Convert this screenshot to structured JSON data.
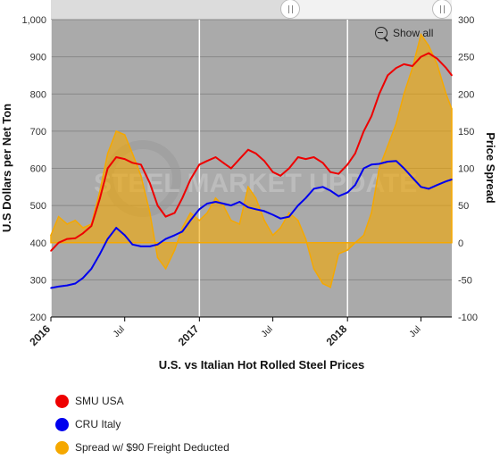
{
  "show_all_label": "Show all",
  "watermark_text": "STEEL MARKET UPDATE",
  "chart_data": {
    "type": "line",
    "title": "U.S. vs Italian Hot Rolled Steel Prices",
    "ylabel": "U.S Dollars per Net Ton",
    "y2label": "Price Spread",
    "ylim": [
      200,
      1000
    ],
    "y2lim": [
      -100,
      300
    ],
    "yticks": [
      "200",
      "300",
      "400",
      "500",
      "600",
      "700",
      "800",
      "900",
      "1,000"
    ],
    "y2ticks": [
      "-100",
      "-50",
      "0",
      "50",
      "100",
      "150",
      "200",
      "250",
      "300"
    ],
    "xlim": [
      "2016-01-01",
      "2018-09-15"
    ],
    "xticks": [
      {
        "label": "2016",
        "date": "2016-01-01",
        "major": true
      },
      {
        "label": "Jul",
        "date": "2016-07-01",
        "major": false
      },
      {
        "label": "2017",
        "date": "2017-01-01",
        "major": true
      },
      {
        "label": "Jul",
        "date": "2017-07-01",
        "major": false
      },
      {
        "label": "2018",
        "date": "2018-01-01",
        "major": true
      },
      {
        "label": "Jul",
        "date": "2018-07-01",
        "major": false
      }
    ],
    "grid": true,
    "legend_position": "bottom-left",
    "colors": {
      "smu": "#ee0000",
      "cru": "#0000ee",
      "spread": "#f5a800",
      "plot_bg": "#aaaaaa"
    },
    "series": [
      {
        "name": "SMU USA",
        "axis": "left",
        "x": [
          "2016-01-01",
          "2016-01-20",
          "2016-02-10",
          "2016-03-01",
          "2016-03-20",
          "2016-04-10",
          "2016-05-01",
          "2016-05-20",
          "2016-06-10",
          "2016-07-01",
          "2016-07-20",
          "2016-08-10",
          "2016-09-01",
          "2016-09-20",
          "2016-10-10",
          "2016-11-01",
          "2016-11-20",
          "2016-12-10",
          "2017-01-01",
          "2017-01-20",
          "2017-02-10",
          "2017-03-01",
          "2017-03-20",
          "2017-04-10",
          "2017-05-01",
          "2017-05-20",
          "2017-06-10",
          "2017-07-01",
          "2017-07-20",
          "2017-08-10",
          "2017-09-01",
          "2017-09-20",
          "2017-10-10",
          "2017-11-01",
          "2017-11-20",
          "2017-12-10",
          "2018-01-01",
          "2018-01-20",
          "2018-02-10",
          "2018-03-01",
          "2018-03-20",
          "2018-04-10",
          "2018-05-01",
          "2018-05-20",
          "2018-06-10",
          "2018-07-01",
          "2018-07-20",
          "2018-08-10",
          "2018-09-01",
          "2018-09-15"
        ],
        "values": [
          378,
          400,
          410,
          412,
          425,
          445,
          520,
          600,
          630,
          625,
          615,
          610,
          560,
          500,
          470,
          480,
          520,
          570,
          610,
          620,
          630,
          615,
          600,
          625,
          650,
          640,
          620,
          590,
          580,
          600,
          630,
          625,
          630,
          615,
          590,
          585,
          610,
          640,
          700,
          740,
          800,
          850,
          870,
          880,
          875,
          900,
          910,
          895,
          870,
          850
        ]
      },
      {
        "name": "CRU Italy",
        "axis": "left",
        "x": [
          "2016-01-01",
          "2016-01-20",
          "2016-02-10",
          "2016-03-01",
          "2016-03-20",
          "2016-04-10",
          "2016-05-01",
          "2016-05-20",
          "2016-06-10",
          "2016-07-01",
          "2016-07-20",
          "2016-08-10",
          "2016-09-01",
          "2016-09-20",
          "2016-10-10",
          "2016-11-01",
          "2016-11-20",
          "2016-12-10",
          "2017-01-01",
          "2017-01-20",
          "2017-02-10",
          "2017-03-01",
          "2017-03-20",
          "2017-04-10",
          "2017-05-01",
          "2017-05-20",
          "2017-06-10",
          "2017-07-01",
          "2017-07-20",
          "2017-08-10",
          "2017-09-01",
          "2017-09-20",
          "2017-10-10",
          "2017-11-01",
          "2017-11-20",
          "2017-12-10",
          "2018-01-01",
          "2018-01-20",
          "2018-02-10",
          "2018-03-01",
          "2018-03-20",
          "2018-04-10",
          "2018-05-01",
          "2018-05-20",
          "2018-06-10",
          "2018-07-01",
          "2018-07-20",
          "2018-08-10",
          "2018-09-01",
          "2018-09-15"
        ],
        "values": [
          278,
          282,
          285,
          290,
          305,
          330,
          370,
          410,
          440,
          420,
          395,
          390,
          390,
          395,
          410,
          420,
          430,
          460,
          490,
          505,
          510,
          505,
          500,
          510,
          495,
          490,
          485,
          475,
          465,
          470,
          500,
          520,
          545,
          550,
          540,
          525,
          535,
          555,
          600,
          610,
          612,
          618,
          620,
          600,
          575,
          550,
          545,
          555,
          565,
          570
        ]
      },
      {
        "name": "Spread w/ $90 Freight Deducted",
        "axis": "right",
        "x": [
          "2016-01-01",
          "2016-01-20",
          "2016-02-10",
          "2016-03-01",
          "2016-03-20",
          "2016-04-10",
          "2016-05-01",
          "2016-05-20",
          "2016-06-10",
          "2016-07-01",
          "2016-07-20",
          "2016-08-10",
          "2016-09-01",
          "2016-09-20",
          "2016-10-10",
          "2016-11-01",
          "2016-11-20",
          "2016-12-10",
          "2017-01-01",
          "2017-01-20",
          "2017-02-10",
          "2017-03-01",
          "2017-03-20",
          "2017-04-10",
          "2017-05-01",
          "2017-05-20",
          "2017-06-10",
          "2017-07-01",
          "2017-07-20",
          "2017-08-10",
          "2017-09-01",
          "2017-09-20",
          "2017-10-10",
          "2017-11-01",
          "2017-11-20",
          "2017-12-10",
          "2018-01-01",
          "2018-01-20",
          "2018-02-10",
          "2018-03-01",
          "2018-03-20",
          "2018-04-10",
          "2018-05-01",
          "2018-05-20",
          "2018-06-10",
          "2018-07-01",
          "2018-07-20",
          "2018-08-10",
          "2018-09-01",
          "2018-09-15"
        ],
        "values": [
          10,
          35,
          25,
          30,
          20,
          25,
          70,
          120,
          150,
          145,
          120,
          90,
          40,
          -20,
          -35,
          -10,
          20,
          40,
          30,
          40,
          60,
          50,
          30,
          25,
          75,
          60,
          30,
          10,
          20,
          40,
          30,
          5,
          -35,
          -55,
          -60,
          -15,
          -10,
          0,
          10,
          40,
          100,
          130,
          160,
          200,
          235,
          280,
          265,
          240,
          200,
          180
        ]
      }
    ]
  }
}
